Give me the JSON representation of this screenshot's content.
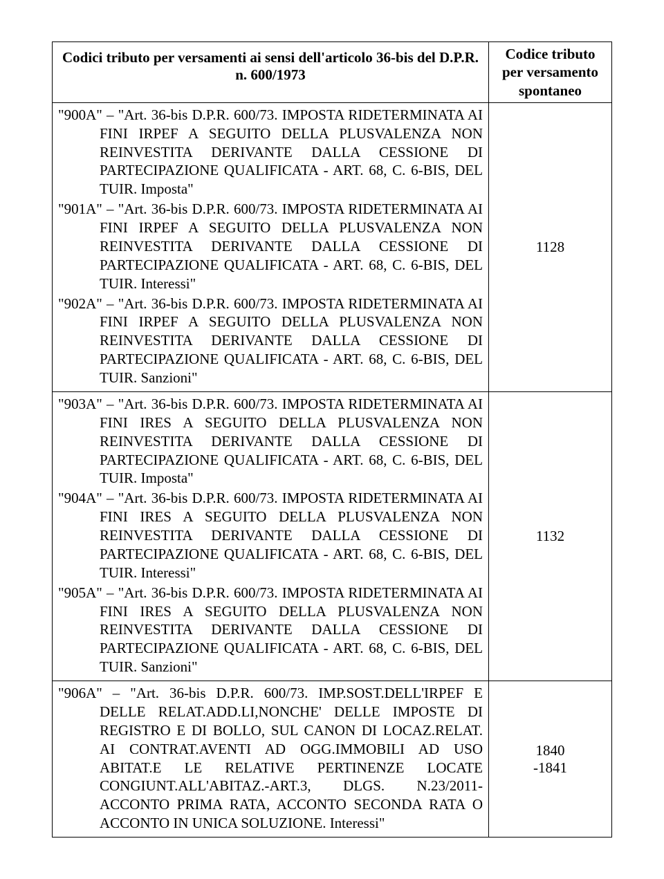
{
  "header": {
    "left_title": "Codici tributo per versamenti ai sensi dell'articolo 36-bis del D.P.R. n. 600/1973",
    "right_title": "Codice tributo per versamento spontaneo"
  },
  "rows": [
    {
      "entries": [
        "\"900A\" – \"Art. 36-bis D.P.R. 600/73. IMPOSTA RIDETERMINATA AI FINI IRPEF A SEGUITO DELLA PLUSVALENZA NON REINVESTITA DERIVANTE DALLA CESSIONE DI PARTECIPAZIONE QUALIFICATA - ART. 68, C. 6-BIS, DEL TUIR. Imposta\"",
        "\"901A\" – \"Art. 36-bis D.P.R. 600/73. IMPOSTA RIDETERMINATA AI FINI IRPEF A SEGUITO DELLA PLUSVALENZA NON REINVESTITA DERIVANTE DALLA CESSIONE DI PARTECIPAZIONE QUALIFICATA - ART. 68, C. 6-BIS, DEL TUIR. Interessi\"",
        "\"902A\" – \"Art. 36-bis D.P.R. 600/73. IMPOSTA RIDETERMINATA AI FINI IRPEF A SEGUITO DELLA PLUSVALENZA NON REINVESTITA DERIVANTE DALLA CESSIONE DI PARTECIPAZIONE QUALIFICATA - ART. 68, C. 6-BIS, DEL TUIR. Sanzioni\""
      ],
      "code": "1128"
    },
    {
      "entries": [
        "\"903A\" – \"Art. 36-bis D.P.R. 600/73. IMPOSTA RIDETERMINATA AI FINI IRES A SEGUITO DELLA PLUSVALENZA NON REINVESTITA DERIVANTE DALLA CESSIONE DI PARTECIPAZIONE QUALIFICATA - ART. 68, C. 6-BIS, DEL TUIR. Imposta\"",
        "\"904A\" – \"Art. 36-bis D.P.R. 600/73. IMPOSTA RIDETERMINATA AI FINI IRES A SEGUITO DELLA PLUSVALENZA NON REINVESTITA DERIVANTE DALLA CESSIONE DI PARTECIPAZIONE QUALIFICATA - ART. 68, C. 6-BIS, DEL TUIR. Interessi\"",
        "\"905A\" – \"Art. 36-bis D.P.R. 600/73. IMPOSTA RIDETERMINATA AI FINI IRES A SEGUITO DELLA PLUSVALENZA NON REINVESTITA DERIVANTE DALLA CESSIONE DI PARTECIPAZIONE QUALIFICATA - ART. 68, C. 6-BIS, DEL TUIR. Sanzioni\""
      ],
      "code": "1132"
    },
    {
      "entries": [
        "\"906A\" – \"Art. 36-bis D.P.R. 600/73. IMP.SOST.DELL'IRPEF E DELLE RELAT.ADD.LI,NONCHE' DELLE IMPOSTE DI REGISTRO E DI BOLLO, SUL CANON DI LOCAZ.RELAT. AI CONTRAT.AVENTI AD OGG.IMMOBILI AD USO ABITAT.E LE RELATIVE PERTINENZE LOCATE CONGIUNT.ALL'ABITAZ.-ART.3, DLGS. N.23/2011- ACCONTO PRIMA RATA, ACCONTO SECONDA RATA O ACCONTO IN UNICA SOLUZIONE. Interessi\""
      ],
      "code": "1840\n-1841"
    }
  ],
  "style": {
    "background_color": "#ffffff",
    "border_color": "#000000",
    "text_color": "#000000",
    "font_family": "Times New Roman",
    "body_fontsize": 21,
    "header_fontsize": 21
  }
}
